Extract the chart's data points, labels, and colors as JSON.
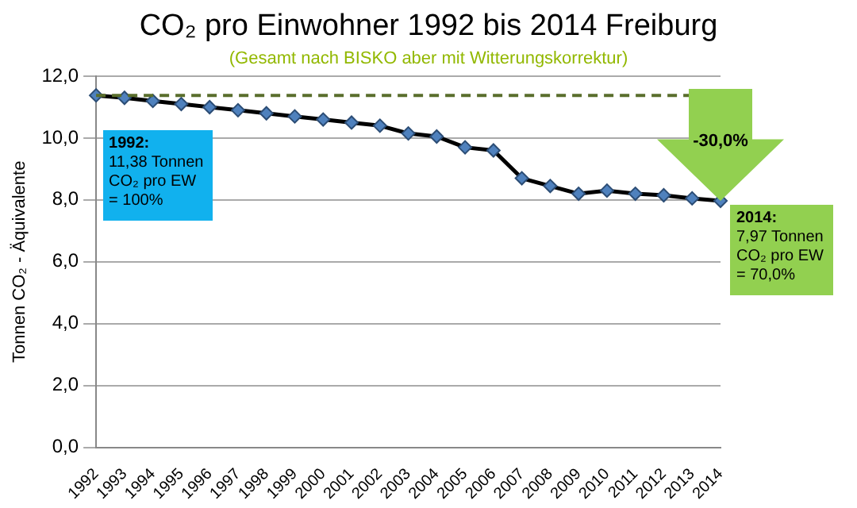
{
  "chart_data": {
    "type": "line",
    "title": "CO₂ pro Einwohner 1992 bis 2014 Freiburg",
    "subtitle": "(Gesamt nach BISKO aber mit Witterungskorrektur)",
    "ylabel": "Tonnen CO₂ - Äquivalente",
    "categories": [
      "1992",
      "1993",
      "1994",
      "1995",
      "1996",
      "1997",
      "1998",
      "1999",
      "2000",
      "2001",
      "2002",
      "2003",
      "2004",
      "2005",
      "2006",
      "2007",
      "2008",
      "2009",
      "2010",
      "2011",
      "2012",
      "2013",
      "2014"
    ],
    "series": [
      {
        "color": "#000000",
        "values": [
          11.38,
          11.3,
          11.2,
          11.1,
          11.0,
          10.9,
          10.8,
          10.7,
          10.6,
          10.5,
          10.4,
          10.15,
          10.05,
          9.7,
          9.6,
          8.7,
          8.45,
          8.2,
          8.3,
          8.2,
          8.15,
          8.05,
          7.97
        ]
      }
    ],
    "ylim": [
      0,
      12
    ],
    "yticks": [
      {
        "value": 0,
        "label": "0,0"
      },
      {
        "value": 2,
        "label": "2,0"
      },
      {
        "value": 4,
        "label": "4,0"
      },
      {
        "value": 6,
        "label": "6,0"
      },
      {
        "value": 8,
        "label": "8,0"
      },
      {
        "value": 10,
        "label": "10,0"
      },
      {
        "value": 12,
        "label": "12,0"
      }
    ],
    "grid": "y",
    "legend": false,
    "marker": "diamond",
    "line_style": "solid",
    "ref_lines": [
      {
        "axis": "y",
        "value": 11.38,
        "color": "#5a6e2c",
        "line_style": "dashed"
      }
    ],
    "annotations": [
      {
        "text": "1992:\n11,38 Tonnen\nCO₂ pro EW\n= 100%",
        "x": "1992",
        "y": 11.38
      },
      {
        "text": "2014:\n7,97 Tonnen\nCO₂ pro EW\n= 70,0%",
        "x": "2014",
        "y": 7.97
      },
      {
        "text": "-30,0%",
        "x": "2014",
        "y": 7.97
      }
    ]
  }
}
